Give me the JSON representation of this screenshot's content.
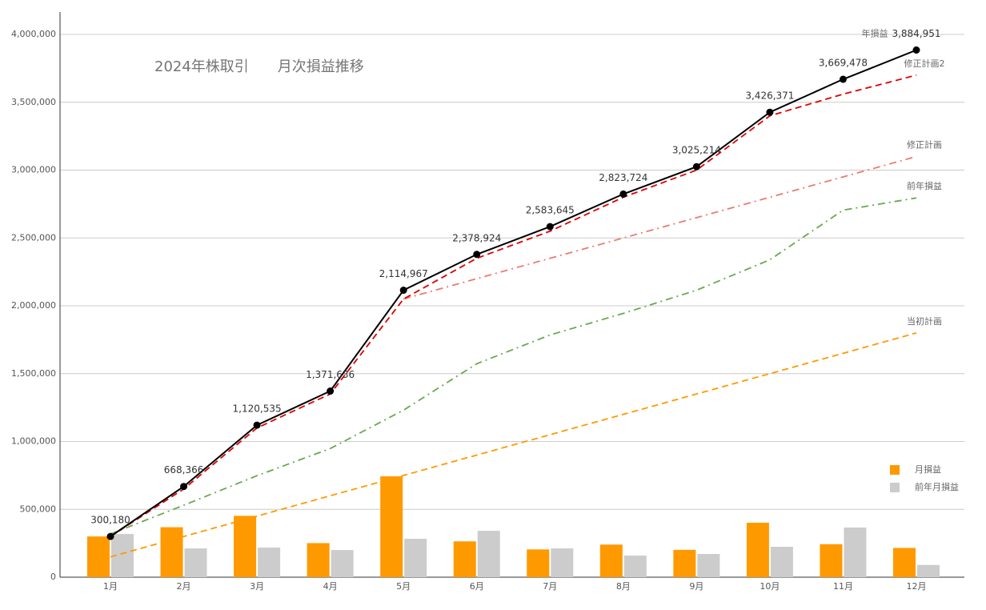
{
  "chart_data": {
    "type": "combo",
    "title": "2024年株取引　　月次損益推移",
    "categories": [
      "1月",
      "2月",
      "3月",
      "4月",
      "5月",
      "6月",
      "7月",
      "8月",
      "9月",
      "10月",
      "11月",
      "12月"
    ],
    "ylim": [
      0,
      4000000
    ],
    "yticks": [
      0,
      {
        "value": 500000,
        "label": "500,000"
      },
      {
        "value": 1000000,
        "label": "1,000,000"
      },
      {
        "value": 1500000,
        "label": "1,500,000"
      },
      {
        "value": 2000000,
        "label": "2,000,000"
      },
      {
        "value": 2500000,
        "label": "2,500,000"
      },
      {
        "value": 3000000,
        "label": "3,000,000"
      },
      {
        "value": 3500000,
        "label": "3,500,000"
      },
      {
        "value": 4000000,
        "label": "4,000,000"
      }
    ],
    "grid": true,
    "legend": "right",
    "series": [
      {
        "name": "月損益",
        "type": "bar",
        "color": "#ff9900",
        "values": [
          300180,
          368186,
          452169,
          251101,
          743331,
          263957,
          204721,
          240079,
          201490,
          401157,
          243107,
          215473
        ]
      },
      {
        "name": "前年月損益",
        "type": "bar",
        "color": "#cccccc",
        "values": [
          318000,
          212000,
          218000,
          200000,
          283000,
          342000,
          212000,
          159000,
          171000,
          224000,
          366000,
          90000
        ]
      },
      {
        "name": "当初計画",
        "type": "line",
        "dash": "dashed",
        "color": "#ff9900",
        "values": [
          150000,
          300000,
          450000,
          600000,
          750000,
          900000,
          1050000,
          1200000,
          1350000,
          1500000,
          1650000,
          1800000
        ]
      },
      {
        "name": "前年損益",
        "type": "line",
        "dash": "dashdot",
        "color": "#6aa84f",
        "values": [
          318000,
          530000,
          748000,
          948000,
          1231000,
          1573000,
          1785000,
          1944000,
          2115000,
          2339000,
          2705000,
          2795000
        ]
      },
      {
        "name": "修正計画",
        "type": "line",
        "dash": "dashdot",
        "color": "#e67c73",
        "values": [
          null,
          null,
          null,
          null,
          2050000,
          2200000,
          2350000,
          2500000,
          2650000,
          2800000,
          2950000,
          3100000
        ]
      },
      {
        "name": "修正計画2",
        "type": "line",
        "dash": "dashed",
        "color": "#e00000",
        "values": [
          300000,
          650000,
          1100000,
          1350000,
          2050000,
          2350000,
          2550000,
          2800000,
          3000000,
          3400000,
          3560000,
          3700000
        ]
      },
      {
        "name": "年損益",
        "type": "line",
        "dash": "solid",
        "markers": true,
        "color": "#000000",
        "values": [
          300180,
          668366,
          1120535,
          1371636,
          2114967,
          2378924,
          2583645,
          2823724,
          3025214,
          3426371,
          3669478,
          3884951
        ],
        "value_labels": [
          "300,180",
          "668,366",
          "1,120,535",
          "1,371,636",
          "2,114,967",
          "2,378,924",
          "2,583,645",
          "2,823,724",
          "3,025,214",
          "3,426,371",
          "3,669,478",
          "3,884,951"
        ]
      }
    ]
  }
}
